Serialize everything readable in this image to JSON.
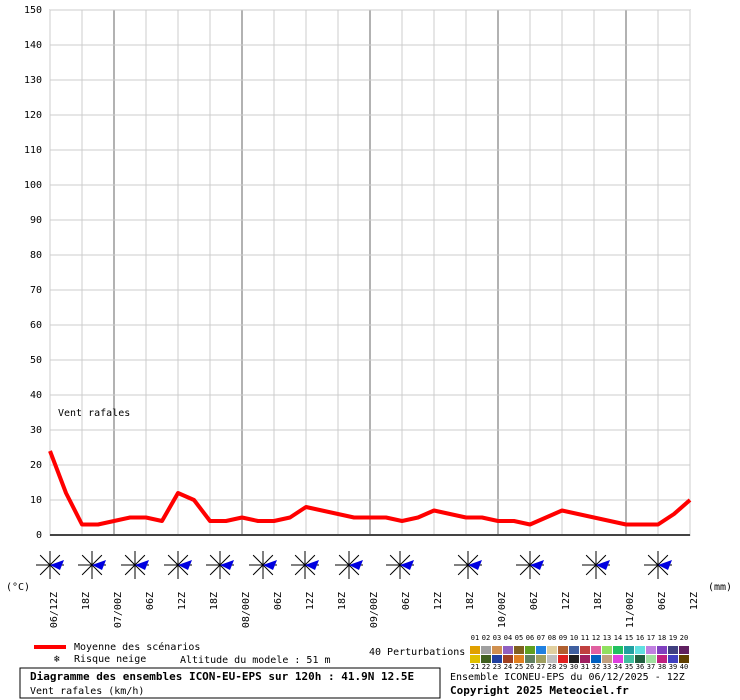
{
  "chart_data": {
    "type": "line",
    "annotation": "Vent rafales",
    "left_unit": "(°C)",
    "right_unit": "(mm)",
    "categories": [
      "06/12Z",
      null,
      "18Z",
      null,
      "07/00Z",
      null,
      "06Z",
      null,
      "12Z",
      null,
      "18Z",
      null,
      "08/00Z",
      null,
      "06Z",
      null,
      "12Z",
      null,
      "18Z",
      null,
      "09/00Z",
      null,
      "06Z",
      null,
      "12Z",
      null,
      "18Z",
      null,
      "10/00Z",
      null,
      "06Z",
      null,
      "12Z",
      null,
      "18Z",
      null,
      "11/00Z",
      null,
      "06Z",
      null,
      "12Z"
    ],
    "series": [
      {
        "name": "Moyenne des scénarios",
        "color": "#ff0000",
        "values": [
          24,
          12,
          3,
          3,
          4,
          5,
          5,
          4,
          12,
          10,
          4,
          4,
          5,
          4,
          4,
          5,
          8,
          7,
          6,
          5,
          5,
          5,
          4,
          5,
          7,
          6,
          5,
          5,
          4,
          4,
          3,
          5,
          7,
          6,
          5,
          4,
          3,
          3,
          3,
          6,
          10
        ]
      }
    ],
    "ylim": [
      0,
      150
    ],
    "yticks": [
      0,
      10,
      20,
      30,
      40,
      50,
      60,
      70,
      80,
      90,
      100,
      110,
      120,
      130,
      140,
      150
    ],
    "grid": true,
    "legend": {
      "snow": "Risque neige",
      "altitude": "Altitude du modele : 51 m",
      "perturbations_title": "40 Perturbations"
    },
    "perturbations": [
      {
        "label": "01",
        "color": "#e0a000"
      },
      {
        "label": "02",
        "color": "#a0a0a0"
      },
      {
        "label": "03",
        "color": "#d09050"
      },
      {
        "label": "04",
        "color": "#9060c0"
      },
      {
        "label": "05",
        "color": "#806020"
      },
      {
        "label": "06",
        "color": "#60a020"
      },
      {
        "label": "07",
        "color": "#2080e0"
      },
      {
        "label": "08",
        "color": "#e0d0a0"
      },
      {
        "label": "09",
        "color": "#b06030"
      },
      {
        "label": "10",
        "color": "#4060a0"
      },
      {
        "label": "11",
        "color": "#c04040"
      },
      {
        "label": "12",
        "color": "#e060a0"
      },
      {
        "label": "13",
        "color": "#90e060"
      },
      {
        "label": "14",
        "color": "#20c060"
      },
      {
        "label": "15",
        "color": "#20a0a0"
      },
      {
        "label": "16",
        "color": "#60e0e0"
      },
      {
        "label": "17",
        "color": "#c080e0"
      },
      {
        "label": "18",
        "color": "#8040c0"
      },
      {
        "label": "19",
        "color": "#404080"
      },
      {
        "label": "20",
        "color": "#602060"
      },
      {
        "label": "21",
        "color": "#e0c000"
      },
      {
        "label": "22",
        "color": "#406020"
      },
      {
        "label": "23",
        "color": "#2040a0"
      },
      {
        "label": "24",
        "color": "#a04020"
      },
      {
        "label": "25",
        "color": "#e08020"
      },
      {
        "label": "26",
        "color": "#608060"
      },
      {
        "label": "27",
        "color": "#a0a060"
      },
      {
        "label": "28",
        "color": "#c0c0c0"
      },
      {
        "label": "29",
        "color": "#e02020"
      },
      {
        "label": "30",
        "color": "#202020"
      },
      {
        "label": "31",
        "color": "#a02060"
      },
      {
        "label": "32",
        "color": "#0060c0"
      },
      {
        "label": "33",
        "color": "#c0a080"
      },
      {
        "label": "34",
        "color": "#e040e0"
      },
      {
        "label": "35",
        "color": "#40c0a0"
      },
      {
        "label": "36",
        "color": "#206040"
      },
      {
        "label": "37",
        "color": "#a0e0a0"
      },
      {
        "label": "38",
        "color": "#c02080"
      },
      {
        "label": "39",
        "color": "#4040c0"
      },
      {
        "label": "40",
        "color": "#604000"
      }
    ],
    "footer": {
      "title": "Diagramme des ensembles ICON-EU-EPS sur 120h : 41.9N 12.5E",
      "subtitle": "Vent rafales (km/h)",
      "run": "Ensemble ICONEU-EPS du 06/12/2025 - 12Z",
      "copyright": "Copyright 2025 Meteociel.fr"
    }
  }
}
